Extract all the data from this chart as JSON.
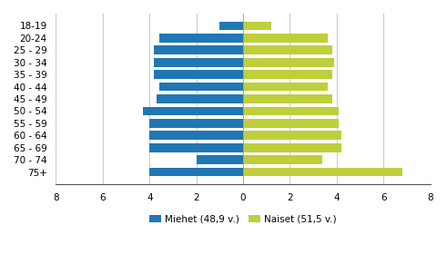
{
  "categories": [
    "18-19",
    "20-24",
    "25 - 29",
    "30 - 34",
    "35 - 39",
    "40 - 44",
    "45 - 49",
    "50 - 54",
    "55 - 59",
    "60 - 64",
    "65 - 69",
    "70 - 74",
    "75+"
  ],
  "men_values": [
    -1.0,
    -3.6,
    -3.8,
    -3.8,
    -3.8,
    -3.6,
    -3.7,
    -4.3,
    -4.0,
    -4.0,
    -4.0,
    -2.0,
    -4.0
  ],
  "women_values": [
    1.2,
    3.6,
    3.8,
    3.9,
    3.8,
    3.6,
    3.8,
    4.1,
    4.1,
    4.2,
    4.2,
    3.4,
    6.8
  ],
  "men_color": "#1f77b4",
  "women_color": "#bfce3b",
  "men_label": "Miehet (48,9 v.)",
  "women_label": "Naiset (51,5 v.)",
  "xlim": [
    -8,
    8
  ],
  "xticks": [
    -8,
    -6,
    -4,
    -2,
    0,
    2,
    4,
    6,
    8
  ],
  "xtick_labels": [
    "8",
    "6",
    "4",
    "2",
    "0",
    "2",
    "4",
    "6",
    "8"
  ],
  "grid_color": "#cccccc",
  "background_color": "#ffffff",
  "bar_height": 0.72
}
